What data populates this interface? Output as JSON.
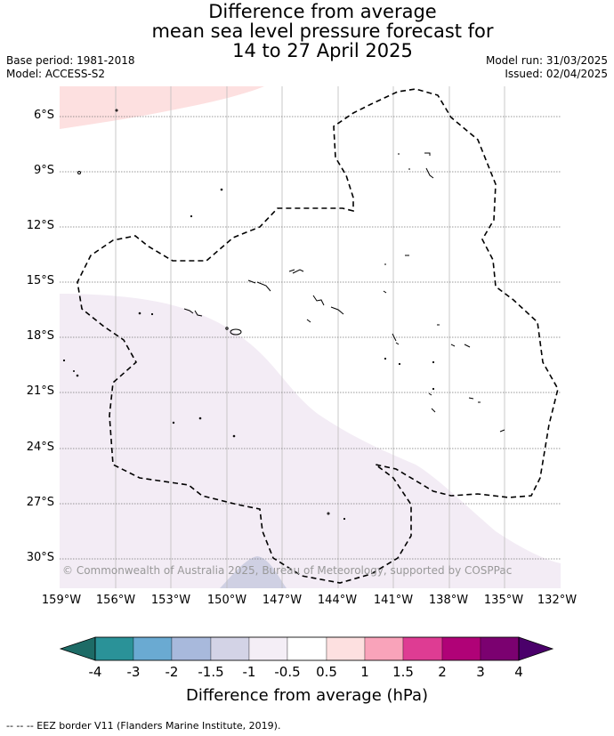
{
  "header": {
    "title_line1": "Difference from average",
    "title_line2": "mean sea level pressure forecast for",
    "title_line3": "14 to 27 April 2025",
    "base_period": "Base period: 1981-2018",
    "model": "Model: ACCESS-S2",
    "model_run": "Model run: 31/03/2025",
    "issued": "Issued: 02/04/2025"
  },
  "map": {
    "lat_labels": [
      "6°S",
      "9°S",
      "12°S",
      "15°S",
      "18°S",
      "21°S",
      "24°S",
      "27°S",
      "30°S"
    ],
    "lon_labels": [
      "159°W",
      "156°W",
      "153°W",
      "150°W",
      "147°W",
      "144°W",
      "141°W",
      "138°W",
      "135°W",
      "132°W"
    ],
    "copyright": "© Commonwealth of Australia 2025, Bureau of Meteorology, supported by COSPPac",
    "regions": [
      {
        "name": "positive-anomaly-region",
        "color": "#fde0e0"
      },
      {
        "name": "negative-anomaly-region",
        "color": "#f3ecf5"
      },
      {
        "name": "strong-negative-patch",
        "color": "#cfd0e3"
      }
    ]
  },
  "colorbar": {
    "colors": [
      "#1d6b66",
      "#2a9298",
      "#6aaad2",
      "#a8b9dc",
      "#d3d3e6",
      "#f4eef6",
      "#ffffff",
      "#fde0e0",
      "#f9a3ba",
      "#de3c93",
      "#b00277",
      "#7b0170",
      "#4a006a"
    ],
    "tick_labels": [
      "-4",
      "-3",
      "-2",
      "-1.5",
      "-1",
      "-0.5",
      "0.5",
      "1",
      "1.5",
      "2",
      "3",
      "4"
    ],
    "title": "Difference from average (hPa)"
  },
  "footnote": "--  --  -- EEZ border V11 (Flanders Marine Institute, 2019)."
}
